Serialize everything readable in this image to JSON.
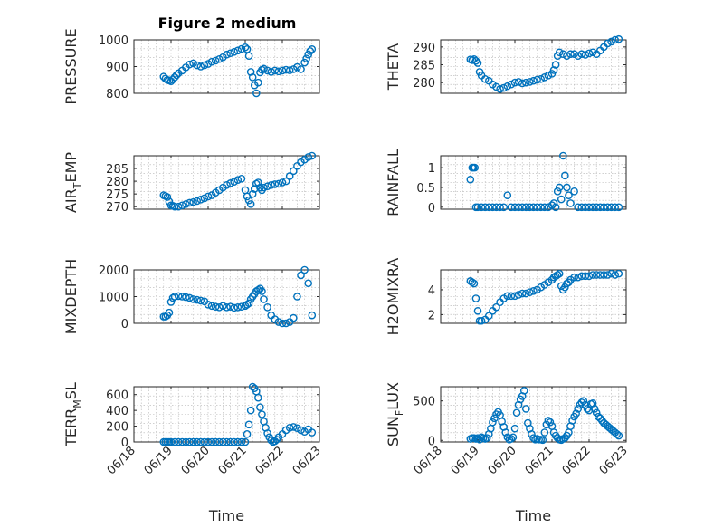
{
  "figure_title": "Figure 2 medium",
  "chart_data": [
    {
      "type": "scatter",
      "ylabel": "PRESSURE",
      "xlabel": "",
      "ylim": [
        800,
        1000
      ],
      "yticks": [
        800,
        900,
        1000
      ],
      "xlim": [
        0,
        5
      ],
      "xticks": [
        0,
        1,
        2,
        3,
        4,
        5
      ],
      "x": [
        0.8,
        0.85,
        0.9,
        0.95,
        1.0,
        1.05,
        1.1,
        1.15,
        1.2,
        1.3,
        1.4,
        1.5,
        1.6,
        1.7,
        1.8,
        1.9,
        2.0,
        2.1,
        2.2,
        2.3,
        2.4,
        2.5,
        2.6,
        2.7,
        2.8,
        2.9,
        3.0,
        3.05,
        3.1,
        3.15,
        3.2,
        3.25,
        3.3,
        3.35,
        3.4,
        3.45,
        3.5,
        3.6,
        3.7,
        3.8,
        3.9,
        4.0,
        4.1,
        4.2,
        4.3,
        4.4,
        4.5,
        4.6,
        4.65,
        4.7,
        4.75,
        4.8
      ],
      "y": [
        862,
        855,
        850,
        848,
        845,
        852,
        860,
        868,
        875,
        885,
        897,
        908,
        912,
        905,
        900,
        905,
        910,
        918,
        922,
        928,
        935,
        945,
        950,
        955,
        960,
        966,
        972,
        965,
        940,
        880,
        860,
        830,
        800,
        840,
        878,
        888,
        892,
        885,
        880,
        885,
        882,
        885,
        888,
        886,
        890,
        898,
        890,
        915,
        930,
        945,
        958,
        965
      ],
      "color": "#0072BD",
      "grid": true
    },
    {
      "type": "scatter",
      "ylabel": "THETA",
      "xlabel": "",
      "ylim": [
        277,
        292
      ],
      "yticks": [
        280,
        285,
        290
      ],
      "xlim": [
        0,
        5
      ],
      "xticks": [
        0,
        1,
        2,
        3,
        4,
        5
      ],
      "x": [
        0.8,
        0.85,
        0.9,
        0.95,
        1.0,
        1.05,
        1.1,
        1.2,
        1.3,
        1.4,
        1.5,
        1.6,
        1.7,
        1.8,
        1.9,
        2.0,
        2.1,
        2.2,
        2.3,
        2.4,
        2.5,
        2.6,
        2.7,
        2.8,
        2.9,
        3.0,
        3.05,
        3.1,
        3.15,
        3.2,
        3.3,
        3.4,
        3.5,
        3.6,
        3.7,
        3.8,
        3.9,
        4.0,
        4.1,
        4.2,
        4.3,
        4.4,
        4.5,
        4.6,
        4.7,
        4.8
      ],
      "y": [
        286.5,
        286.3,
        286.6,
        286.1,
        285.5,
        283.0,
        282.0,
        281.0,
        280.5,
        279.5,
        278.8,
        278.2,
        278.5,
        279.0,
        279.5,
        280.0,
        280.2,
        279.8,
        280.0,
        280.2,
        280.5,
        280.8,
        281.0,
        281.5,
        282.0,
        282.5,
        283.5,
        285.0,
        287.5,
        288.5,
        288.0,
        287.5,
        288.0,
        288.0,
        287.5,
        288.0,
        287.8,
        288.2,
        288.5,
        288.0,
        289.0,
        290.0,
        291.0,
        291.5,
        292.0,
        292.2
      ],
      "color": "#0072BD",
      "grid": true
    },
    {
      "type": "scatter",
      "ylabel_main": "AIR",
      "ylabel_sub": "T",
      "ylabel_tail": "EMP",
      "xlabel": "",
      "ylim": [
        269,
        290
      ],
      "yticks": [
        270,
        275,
        280,
        285
      ],
      "xlim": [
        0,
        5
      ],
      "xticks": [
        0,
        1,
        2,
        3,
        4,
        5
      ],
      "x": [
        0.8,
        0.85,
        0.9,
        0.95,
        1.0,
        1.05,
        1.1,
        1.2,
        1.3,
        1.4,
        1.5,
        1.6,
        1.7,
        1.8,
        1.9,
        2.0,
        2.1,
        2.2,
        2.3,
        2.4,
        2.5,
        2.6,
        2.7,
        2.8,
        2.9,
        3.0,
        3.05,
        3.1,
        3.15,
        3.2,
        3.25,
        3.3,
        3.35,
        3.4,
        3.45,
        3.5,
        3.6,
        3.7,
        3.8,
        3.9,
        4.0,
        4.1,
        4.2,
        4.3,
        4.4,
        4.5,
        4.6,
        4.7,
        4.8
      ],
      "y": [
        274.5,
        274.2,
        273.8,
        272.0,
        270.5,
        270.3,
        270.0,
        270.0,
        270.5,
        271.0,
        271.5,
        271.8,
        272.2,
        272.8,
        273.3,
        274.0,
        274.5,
        275.5,
        276.5,
        277.5,
        278.5,
        279.2,
        279.8,
        280.5,
        281.0,
        276.5,
        274.0,
        272.5,
        271.0,
        275.0,
        277.0,
        279.0,
        279.5,
        277.5,
        276.5,
        277.5,
        278.0,
        278.5,
        278.8,
        279.0,
        279.5,
        280.0,
        282.0,
        284.0,
        286.0,
        287.5,
        288.5,
        289.5,
        290.0
      ],
      "color": "#0072BD",
      "grid": true
    },
    {
      "type": "scatter",
      "ylabel": "RAINFALL",
      "xlabel": "",
      "ylim": [
        -0.05,
        1.3
      ],
      "yticks": [
        0,
        0.5,
        1
      ],
      "ytick_labels": [
        "0",
        "0.5",
        "1"
      ],
      "xlim": [
        0,
        5
      ],
      "xticks": [
        0,
        1,
        2,
        3,
        4,
        5
      ],
      "x": [
        0.8,
        0.85,
        0.88,
        0.92,
        0.95,
        1.0,
        1.1,
        1.2,
        1.3,
        1.4,
        1.5,
        1.6,
        1.7,
        1.8,
        1.9,
        2.0,
        2.1,
        2.2,
        2.3,
        2.4,
        2.5,
        2.6,
        2.7,
        2.8,
        2.9,
        3.0,
        3.05,
        3.1,
        3.15,
        3.2,
        3.25,
        3.3,
        3.35,
        3.4,
        3.45,
        3.5,
        3.6,
        3.7,
        3.8,
        3.9,
        4.0,
        4.1,
        4.2,
        4.3,
        4.4,
        4.5,
        4.6,
        4.7,
        4.8
      ],
      "y": [
        0.7,
        1.0,
        1.0,
        1.0,
        0.0,
        0.0,
        0.0,
        0.0,
        0.0,
        0.0,
        0.0,
        0.0,
        0.0,
        0.3,
        0.0,
        0.0,
        0.0,
        0.0,
        0.0,
        0.0,
        0.0,
        0.0,
        0.0,
        0.0,
        0.0,
        0.05,
        0.1,
        0.0,
        0.4,
        0.5,
        0.2,
        1.3,
        0.8,
        0.5,
        0.3,
        0.1,
        0.4,
        0.0,
        0.0,
        0.0,
        0.0,
        0.0,
        0.0,
        0.0,
        0.0,
        0.0,
        0.0,
        0.0,
        0.0
      ],
      "color": "#0072BD",
      "grid": true
    },
    {
      "type": "scatter",
      "ylabel": "MIXDEPTH",
      "xlabel": "",
      "ylim": [
        0,
        2000
      ],
      "yticks": [
        0,
        1000,
        2000
      ],
      "xlim": [
        0,
        5
      ],
      "xticks": [
        0,
        1,
        2,
        3,
        4,
        5
      ],
      "x": [
        0.8,
        0.85,
        0.9,
        0.95,
        1.0,
        1.05,
        1.1,
        1.2,
        1.3,
        1.4,
        1.5,
        1.6,
        1.7,
        1.8,
        1.9,
        2.0,
        2.1,
        2.2,
        2.3,
        2.4,
        2.5,
        2.6,
        2.7,
        2.8,
        2.9,
        3.0,
        3.05,
        3.1,
        3.15,
        3.2,
        3.25,
        3.3,
        3.35,
        3.4,
        3.45,
        3.5,
        3.6,
        3.7,
        3.8,
        3.9,
        4.0,
        4.1,
        4.2,
        4.3,
        4.4,
        4.5,
        4.6,
        4.7,
        4.8
      ],
      "y": [
        250,
        250,
        300,
        400,
        800,
        950,
        1000,
        1020,
        1000,
        980,
        950,
        900,
        880,
        850,
        820,
        700,
        650,
        620,
        600,
        650,
        600,
        620,
        580,
        600,
        620,
        650,
        700,
        750,
        900,
        1000,
        1100,
        1200,
        1250,
        1300,
        1200,
        900,
        600,
        300,
        150,
        50,
        0,
        0,
        50,
        200,
        1000,
        1800,
        2000,
        1500,
        300
      ],
      "color": "#0072BD",
      "grid": true
    },
    {
      "type": "scatter",
      "ylabel": "H2OMIXRA",
      "xlabel": "",
      "ylim": [
        1.3,
        5.6
      ],
      "yticks": [
        2,
        4
      ],
      "xlim": [
        0,
        5
      ],
      "xticks": [
        0,
        1,
        2,
        3,
        4,
        5
      ],
      "x": [
        0.8,
        0.85,
        0.9,
        0.95,
        1.0,
        1.05,
        1.1,
        1.2,
        1.3,
        1.4,
        1.5,
        1.6,
        1.7,
        1.8,
        1.9,
        2.0,
        2.1,
        2.2,
        2.3,
        2.4,
        2.5,
        2.6,
        2.7,
        2.8,
        2.9,
        3.0,
        3.05,
        3.1,
        3.15,
        3.2,
        3.25,
        3.3,
        3.35,
        3.4,
        3.45,
        3.5,
        3.6,
        3.7,
        3.8,
        3.9,
        4.0,
        4.1,
        4.2,
        4.3,
        4.4,
        4.5,
        4.6,
        4.7,
        4.8
      ],
      "y": [
        4.7,
        4.6,
        4.5,
        3.3,
        2.3,
        1.5,
        1.5,
        1.6,
        1.9,
        2.3,
        2.6,
        3.0,
        3.3,
        3.5,
        3.5,
        3.5,
        3.6,
        3.7,
        3.7,
        3.8,
        3.9,
        4.0,
        4.2,
        4.4,
        4.6,
        4.8,
        5.0,
        5.1,
        5.2,
        5.3,
        4.3,
        4.0,
        4.2,
        4.5,
        4.6,
        4.8,
        5.0,
        5.0,
        5.1,
        5.1,
        5.1,
        5.2,
        5.2,
        5.2,
        5.2,
        5.2,
        5.3,
        5.2,
        5.3
      ],
      "color": "#0072BD",
      "grid": true
    },
    {
      "type": "scatter",
      "ylabel_main": "TERR",
      "ylabel_sub": "M",
      "ylabel_tail": "SL",
      "xlabel": "Time",
      "ylim": [
        0,
        700
      ],
      "yticks": [
        0,
        200,
        400,
        600
      ],
      "xlim": [
        0,
        5
      ],
      "xticks": [
        0,
        1,
        2,
        3,
        4,
        5
      ],
      "xtick_labels": [
        "06/18",
        "06/19",
        "06/20",
        "06/21",
        "06/22",
        "06/23"
      ],
      "x": [
        0.8,
        0.85,
        0.9,
        0.95,
        1.0,
        1.1,
        1.2,
        1.3,
        1.4,
        1.5,
        1.6,
        1.7,
        1.8,
        1.9,
        2.0,
        2.1,
        2.2,
        2.3,
        2.4,
        2.5,
        2.6,
        2.7,
        2.8,
        2.9,
        3.0,
        3.05,
        3.1,
        3.15,
        3.2,
        3.25,
        3.3,
        3.35,
        3.4,
        3.45,
        3.5,
        3.55,
        3.6,
        3.65,
        3.7,
        3.75,
        3.8,
        3.85,
        3.9,
        4.0,
        4.1,
        4.2,
        4.3,
        4.4,
        4.5,
        4.6,
        4.7,
        4.8
      ],
      "y": [
        0,
        0,
        0,
        0,
        0,
        0,
        0,
        0,
        0,
        0,
        0,
        0,
        0,
        0,
        0,
        0,
        0,
        0,
        0,
        0,
        0,
        0,
        0,
        0,
        0,
        100,
        220,
        400,
        700,
        680,
        640,
        560,
        440,
        350,
        260,
        180,
        110,
        60,
        20,
        0,
        10,
        30,
        60,
        100,
        150,
        180,
        190,
        175,
        150,
        130,
        160,
        120
      ],
      "color": "#0072BD",
      "grid": true
    },
    {
      "type": "scatter",
      "ylabel_main": "SUN",
      "ylabel_sub": "F",
      "ylabel_tail": "LUX",
      "xlabel": "Time",
      "ylim": [
        -20,
        680
      ],
      "yticks": [
        0,
        500
      ],
      "xlim": [
        0,
        5
      ],
      "xticks": [
        0,
        1,
        2,
        3,
        4,
        5
      ],
      "xtick_labels": [
        "06/18",
        "06/19",
        "06/20",
        "06/21",
        "06/22",
        "06/23"
      ],
      "x": [
        0.8,
        0.85,
        0.9,
        0.95,
        1.0,
        1.05,
        1.1,
        1.15,
        1.2,
        1.25,
        1.3,
        1.35,
        1.4,
        1.45,
        1.5,
        1.55,
        1.6,
        1.65,
        1.7,
        1.75,
        1.8,
        1.85,
        1.9,
        1.95,
        2.0,
        2.05,
        2.1,
        2.15,
        2.2,
        2.25,
        2.3,
        2.35,
        2.4,
        2.45,
        2.5,
        2.55,
        2.6,
        2.65,
        2.7,
        2.75,
        2.8,
        2.85,
        2.9,
        2.95,
        3.0,
        3.05,
        3.1,
        3.15,
        3.2,
        3.25,
        3.3,
        3.35,
        3.4,
        3.45,
        3.5,
        3.55,
        3.6,
        3.65,
        3.7,
        3.75,
        3.8,
        3.85,
        3.9,
        3.95,
        4.0,
        4.05,
        4.1,
        4.15,
        4.2,
        4.25,
        4.3,
        4.35,
        4.4,
        4.45,
        4.5,
        4.55,
        4.6,
        4.65,
        4.7,
        4.75,
        4.8
      ],
      "y": [
        20,
        30,
        30,
        20,
        30,
        10,
        40,
        30,
        20,
        30,
        80,
        150,
        230,
        280,
        330,
        360,
        320,
        240,
        170,
        100,
        40,
        10,
        20,
        40,
        150,
        350,
        450,
        520,
        560,
        630,
        400,
        220,
        150,
        80,
        30,
        10,
        20,
        10,
        10,
        5,
        100,
        200,
        250,
        230,
        180,
        100,
        60,
        30,
        10,
        5,
        20,
        30,
        60,
        100,
        180,
        250,
        300,
        340,
        400,
        450,
        480,
        500,
        450,
        400,
        380,
        460,
        470,
        400,
        350,
        300,
        280,
        250,
        220,
        200,
        180,
        160,
        140,
        120,
        100,
        80,
        60
      ],
      "color": "#0072BD",
      "grid": true
    }
  ]
}
